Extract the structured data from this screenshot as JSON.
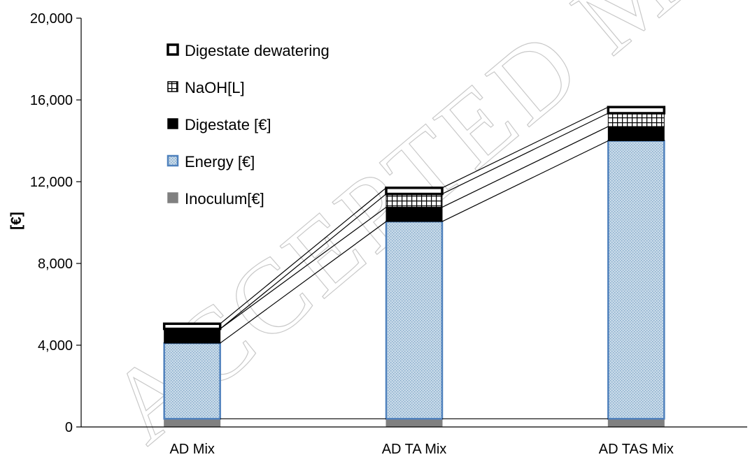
{
  "watermark": "ACCEPTED MANUSCRIPT",
  "chart_data": {
    "type": "bar",
    "stacked": true,
    "categories": [
      "AD Mix",
      "AD TA Mix",
      "AD TAS Mix"
    ],
    "ylabel": "[€]",
    "xlabel": "",
    "title": "",
    "ylim": [
      0,
      20000
    ],
    "yticks": [
      0,
      4000,
      8000,
      12000,
      16000,
      20000
    ],
    "ytick_labels": [
      "0",
      "4,000",
      "8,000",
      "12,000",
      "16,000",
      "20,000"
    ],
    "legend_placement": "top-left",
    "series_lines": true,
    "series": [
      {
        "name": "Inoculum[€]",
        "values": [
          400,
          400,
          400
        ],
        "color": "#808080",
        "pattern": "solid"
      },
      {
        "name": "Energy  [€]",
        "values": [
          3700,
          9650,
          13600
        ],
        "color": "#4f81bd",
        "pattern": "dotted"
      },
      {
        "name": "Digestate [€]",
        "values": [
          700,
          700,
          700
        ],
        "color": "#000000",
        "pattern": "solid"
      },
      {
        "name": "NaOH[L]",
        "values": [
          0,
          650,
          650
        ],
        "color": "#000000",
        "pattern": "grid"
      },
      {
        "name": "Digestate dewatering",
        "values": [
          250,
          300,
          300
        ],
        "color": "#ffffff",
        "pattern": "outline"
      }
    ]
  }
}
